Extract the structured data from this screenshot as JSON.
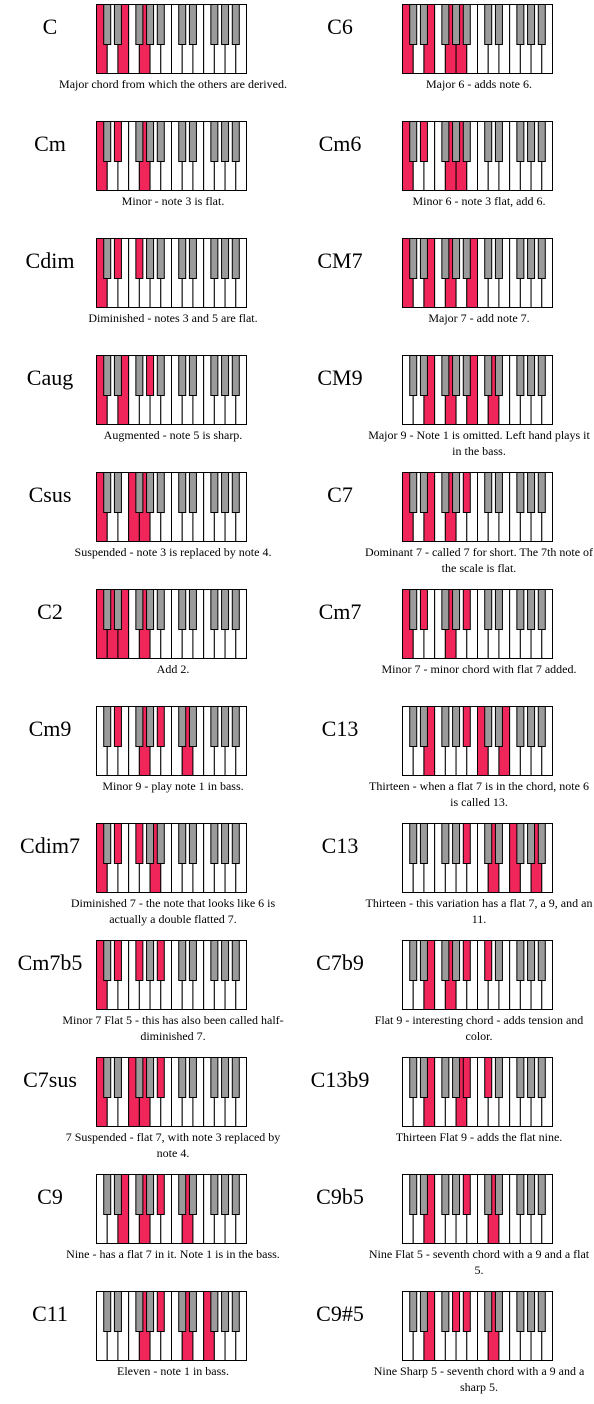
{
  "colors": {
    "highlight": "#f0255a",
    "black_key": "#9b9b9b",
    "white_key": "#ffffff",
    "outline": "#000000"
  },
  "chords": [
    {
      "name": "C",
      "description": "Major chord from which the others are derived.",
      "notes": [
        "C",
        "E",
        "G"
      ]
    },
    {
      "name": "C6",
      "description": "Major 6 - adds note 6.",
      "notes": [
        "C",
        "E",
        "G",
        "A"
      ]
    },
    {
      "name": "Cm",
      "description": "Minor - note 3 is flat.",
      "notes": [
        "C",
        "Eb",
        "G"
      ]
    },
    {
      "name": "Cm6",
      "description": "Minor 6 - note 3 flat, add 6.",
      "notes": [
        "C",
        "Eb",
        "G",
        "A"
      ]
    },
    {
      "name": "Cdim",
      "description": "Diminished - notes 3 and 5 are flat.",
      "notes": [
        "C",
        "Eb",
        "Gb"
      ]
    },
    {
      "name": "CM7",
      "description": "Major 7 - add note 7.",
      "notes": [
        "C",
        "E",
        "G",
        "B"
      ]
    },
    {
      "name": "Caug",
      "description": "Augmented - note 5 is sharp.",
      "notes": [
        "C",
        "E",
        "G#"
      ]
    },
    {
      "name": "CM9",
      "description": "Major 9 - Note 1 is omitted. Left hand plays it in the bass.",
      "notes": [
        "E",
        "G",
        "B",
        "D2"
      ]
    },
    {
      "name": "Csus",
      "description": "Suspended - note 3 is replaced by note 4.",
      "notes": [
        "C",
        "F",
        "G"
      ]
    },
    {
      "name": "C7",
      "description": "Dominant 7 - called 7 for short. The 7th note of the scale is flat.",
      "notes": [
        "C",
        "E",
        "G",
        "Bb"
      ]
    },
    {
      "name": "C2",
      "description": "Add 2.",
      "notes": [
        "C",
        "D",
        "E",
        "G"
      ]
    },
    {
      "name": "Cm7",
      "description": "Minor 7 - minor chord with flat 7 added.",
      "notes": [
        "C",
        "Eb",
        "G",
        "Bb"
      ]
    },
    {
      "name": "Cm9",
      "description": "Minor 9 - play note 1 in bass.",
      "notes": [
        "Eb",
        "G",
        "Bb",
        "D2"
      ]
    },
    {
      "name": "C13",
      "description": "Thirteen - when a flat 7 is in the chord, note 6 is called 13.",
      "notes": [
        "E",
        "Bb",
        "C2",
        "E2"
      ]
    },
    {
      "name": "Cdim7",
      "description": "Diminished 7 - the note that looks like 6 is actually a double flatted 7.",
      "notes": [
        "C",
        "Eb",
        "Gb",
        "A"
      ]
    },
    {
      "name": "C13",
      "description": "Thirteen - this variation has a flat 7, a 9, and an 11.",
      "notes": [
        "Bb",
        "D2",
        "F2",
        "A2"
      ]
    },
    {
      "name": "Cm7b5",
      "description": "Minor 7 Flat 5 - this has also been called half-diminished 7.",
      "notes": [
        "C",
        "Eb",
        "Gb",
        "Bb"
      ]
    },
    {
      "name": "C7b9",
      "description": "Flat 9 - interesting chord - adds tension and color.",
      "notes": [
        "E",
        "G",
        "Bb",
        "Db2"
      ]
    },
    {
      "name": "C7sus",
      "description": "7 Suspended - flat 7, with note 3 replaced by note 4.",
      "notes": [
        "C",
        "F",
        "G",
        "Bb"
      ]
    },
    {
      "name": "C13b9",
      "description": "Thirteen Flat 9 - adds the flat nine.",
      "notes": [
        "E",
        "A",
        "Bb",
        "Db2"
      ]
    },
    {
      "name": "C9",
      "description": "Nine - has a flat 7 in it.  Note 1 is in the bass.",
      "notes": [
        "E",
        "G",
        "Bb",
        "D2"
      ]
    },
    {
      "name": "C9b5",
      "description": "Nine Flat 5 - seventh chord with a 9 and a flat 5.",
      "notes": [
        "E",
        "Bb",
        "D2"
      ]
    },
    {
      "name": "C11",
      "description": "Eleven - note 1 in bass.",
      "notes": [
        "G",
        "Bb",
        "D2",
        "F2"
      ]
    },
    {
      "name": "C9#5",
      "description": "Nine Sharp 5 - seventh chord with a 9 and a sharp 5.",
      "notes": [
        "E",
        "Ab",
        "Bb",
        "D2"
      ]
    }
  ]
}
